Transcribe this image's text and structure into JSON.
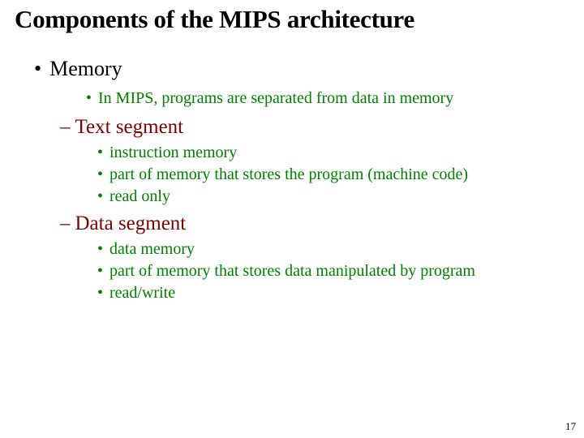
{
  "title": "Components of the MIPS architecture",
  "level1": {
    "bullet": "•",
    "label": "Memory"
  },
  "intro": {
    "bullet": "•",
    "text": "In MIPS, programs are separated from data in memory"
  },
  "seg1": {
    "heading": {
      "dash": "–",
      "text": "Text segment"
    },
    "items": [
      {
        "bullet": "•",
        "text": "instruction memory"
      },
      {
        "bullet": "•",
        "text": "part of memory that stores the program (machine code)"
      },
      {
        "bullet": "•",
        "text": "read only"
      }
    ]
  },
  "seg2": {
    "heading": {
      "dash": "–",
      "text": "Data segment"
    },
    "items": [
      {
        "bullet": "•",
        "text": "data memory"
      },
      {
        "bullet": "•",
        "text": "part of memory that stores data manipulated by program"
      },
      {
        "bullet": "•",
        "text": "read/write"
      }
    ]
  },
  "pageNumber": "17",
  "colors": {
    "title": "#000000",
    "level1": "#000000",
    "green": "#008000",
    "maroon": "#800000",
    "background": "#ffffff"
  }
}
